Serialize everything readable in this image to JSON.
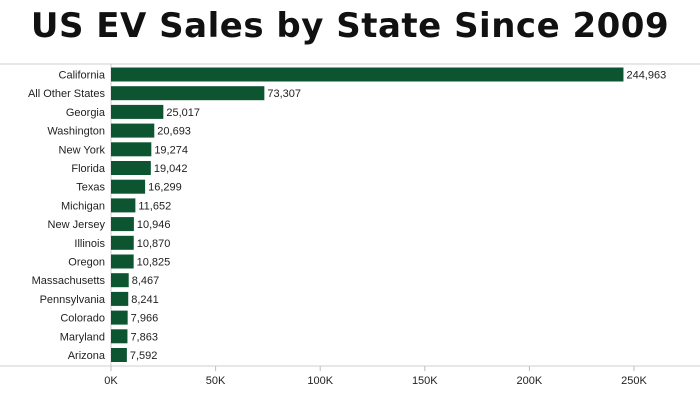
{
  "chart_data": {
    "type": "bar",
    "orientation": "horizontal",
    "title": "US EV Sales by State Since 2009",
    "categories": [
      "California",
      "All Other States",
      "Georgia",
      "Washington",
      "New York",
      "Florida",
      "Texas",
      "Michigan",
      "New Jersey",
      "Illinois",
      "Oregon",
      "Massachusetts",
      "Pennsylvania",
      "Colorado",
      "Maryland",
      "Arizona"
    ],
    "values": [
      244963,
      73307,
      25017,
      20693,
      19274,
      19042,
      16299,
      11652,
      10946,
      10870,
      10825,
      8467,
      8241,
      7966,
      7863,
      7592
    ],
    "value_labels": [
      "244,963",
      "73,307",
      "25,017",
      "20,693",
      "19,274",
      "19,042",
      "16,299",
      "11,652",
      "10,946",
      "10,870",
      "10,825",
      "8,467",
      "8,241",
      "7,966",
      "7,863",
      "7,592"
    ],
    "x_ticks": [
      0,
      50000,
      100000,
      150000,
      200000,
      250000
    ],
    "x_tick_labels": [
      "0K",
      "50K",
      "100K",
      "150K",
      "200K",
      "250K"
    ],
    "xlim": [
      0,
      280000
    ],
    "bar_color": "#0d5530",
    "grid": false
  }
}
